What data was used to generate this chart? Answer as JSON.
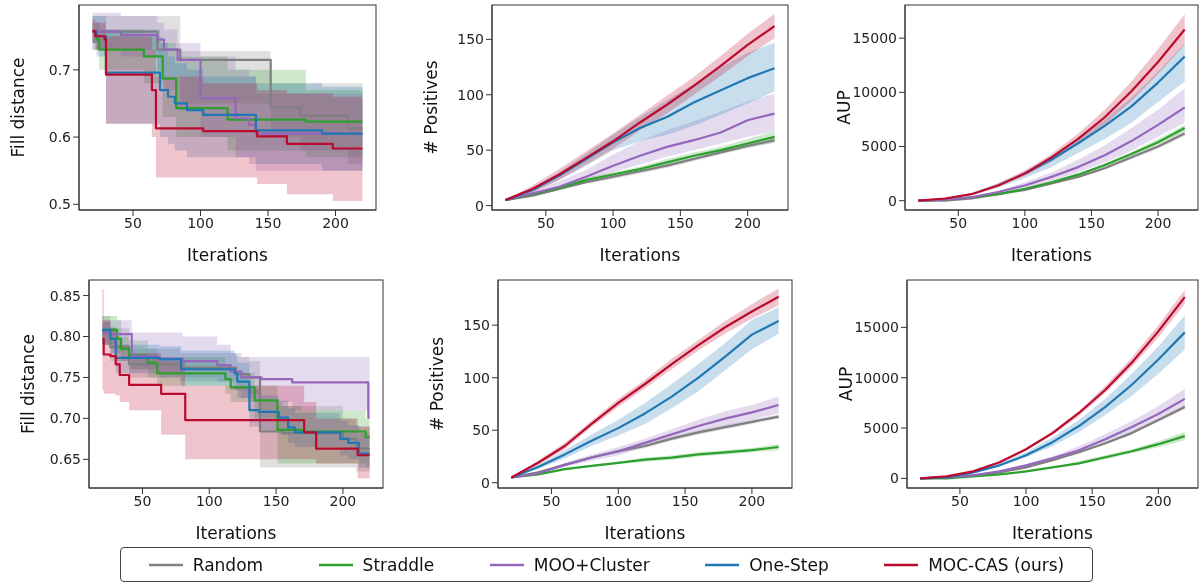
{
  "chart_data": [
    {
      "type": "step",
      "xlabel": "Iterations",
      "ylabel": "Fill distance",
      "xlim": [
        10,
        230
      ],
      "xticks": [
        50,
        100,
        150,
        200
      ],
      "ylim": [
        0.4915,
        0.7965
      ],
      "yticks": [
        0.5,
        0.6,
        0.7
      ],
      "legend": "bottom",
      "series": [
        {
          "name": "Random",
          "color": "#7f7f7f",
          "x": [
            20,
            68,
            85,
            152,
            174,
            209,
            220
          ],
          "values": [
            0.757,
            0.73,
            0.715,
            0.644,
            0.632,
            0.613,
            0.613
          ],
          "upper": [
            0.78,
            0.78,
            0.728,
            0.68,
            0.68,
            0.68,
            0.68
          ],
          "lower": [
            0.73,
            0.69,
            0.65,
            0.6,
            0.58,
            0.56,
            0.56
          ]
        },
        {
          "name": "Straddle",
          "color": "#2ca02c",
          "x": [
            20,
            23,
            25,
            58,
            72,
            82,
            120,
            178,
            220
          ],
          "values": [
            0.757,
            0.745,
            0.73,
            0.72,
            0.687,
            0.643,
            0.626,
            0.623,
            0.623
          ],
          "upper": [
            0.77,
            0.77,
            0.76,
            0.75,
            0.74,
            0.72,
            0.7,
            0.67,
            0.67
          ],
          "lower": [
            0.74,
            0.73,
            0.7,
            0.68,
            0.63,
            0.6,
            0.58,
            0.57,
            0.57
          ]
        },
        {
          "name": "MOO+Cluster",
          "color": "#9467bd",
          "x": [
            20,
            41,
            68,
            73,
            83,
            100,
            126,
            136,
            141,
            220
          ],
          "values": [
            0.757,
            0.752,
            0.745,
            0.73,
            0.715,
            0.658,
            0.628,
            0.618,
            0.605,
            0.605
          ],
          "upper": [
            0.785,
            0.78,
            0.77,
            0.76,
            0.74,
            0.72,
            0.7,
            0.69,
            0.665,
            0.665
          ],
          "lower": [
            0.73,
            0.72,
            0.7,
            0.67,
            0.64,
            0.6,
            0.57,
            0.56,
            0.55,
            0.55
          ]
        },
        {
          "name": "One-Step",
          "color": "#1f77b4",
          "x": [
            20,
            23,
            30,
            70,
            76,
            81,
            90,
            102,
            141,
            190,
            220
          ],
          "values": [
            0.757,
            0.75,
            0.696,
            0.67,
            0.66,
            0.65,
            0.64,
            0.633,
            0.61,
            0.605,
            0.605
          ],
          "upper": [
            0.78,
            0.78,
            0.76,
            0.74,
            0.72,
            0.71,
            0.7,
            0.69,
            0.68,
            0.675,
            0.675
          ],
          "lower": [
            0.74,
            0.72,
            0.62,
            0.6,
            0.59,
            0.58,
            0.57,
            0.57,
            0.56,
            0.55,
            0.55
          ]
        },
        {
          "name": "MOC-CAS (ours)",
          "color": "#bb0a2e",
          "x": [
            20,
            22,
            29,
            30,
            64,
            67,
            102,
            142,
            164,
            198,
            220
          ],
          "values": [
            0.758,
            0.75,
            0.745,
            0.693,
            0.67,
            0.613,
            0.609,
            0.601,
            0.59,
            0.583,
            0.583
          ],
          "upper": [
            0.775,
            0.77,
            0.77,
            0.75,
            0.73,
            0.69,
            0.68,
            0.67,
            0.665,
            0.66,
            0.66
          ],
          "lower": [
            0.74,
            0.73,
            0.72,
            0.62,
            0.6,
            0.54,
            0.54,
            0.53,
            0.515,
            0.505,
            0.505
          ]
        }
      ]
    },
    {
      "type": "line",
      "xlabel": "Iterations",
      "ylabel": "# Positives",
      "xlim": [
        10,
        230
      ],
      "xticks": [
        50,
        100,
        150,
        200
      ],
      "ylim": [
        -4,
        181
      ],
      "yticks": [
        0,
        50,
        100,
        150
      ],
      "x": [
        20,
        40,
        60,
        80,
        100,
        120,
        140,
        160,
        180,
        200,
        220
      ],
      "series": [
        {
          "color": "#7f7f7f",
          "values": [
            5,
            9,
            15,
            21,
            26,
            31,
            36,
            42,
            48,
            54,
            59
          ],
          "upper": [
            5,
            10,
            16,
            22,
            28,
            33,
            38,
            44,
            50,
            56,
            61
          ],
          "lower": [
            5,
            8,
            14,
            20,
            24,
            29,
            34,
            40,
            46,
            52,
            57
          ]
        },
        {
          "color": "#2ca02c",
          "values": [
            5,
            10,
            16,
            23,
            28,
            33,
            39,
            45,
            50,
            56,
            62
          ],
          "upper": [
            5,
            11,
            17,
            25,
            30,
            35,
            42,
            48,
            53,
            60,
            67
          ],
          "lower": [
            5,
            9,
            15,
            21,
            26,
            31,
            36,
            42,
            47,
            52,
            57
          ]
        },
        {
          "color": "#9467bd",
          "values": [
            5,
            11,
            17,
            26,
            36,
            45,
            53,
            59,
            66,
            77,
            83
          ],
          "upper": [
            5,
            13,
            22,
            32,
            46,
            58,
            68,
            76,
            85,
            94,
            101
          ],
          "lower": [
            5,
            10,
            15,
            22,
            30,
            37,
            44,
            50,
            56,
            62,
            67
          ]
        },
        {
          "color": "#1f77b4",
          "values": [
            5,
            14,
            27,
            42,
            57,
            70,
            80,
            93,
            104,
            115,
            124
          ],
          "upper": [
            5,
            16,
            30,
            47,
            64,
            80,
            95,
            110,
            125,
            138,
            147
          ],
          "lower": [
            5,
            12,
            23,
            36,
            50,
            58,
            64,
            72,
            82,
            92,
            103
          ]
        },
        {
          "color": "#bb0a2e",
          "values": [
            5,
            15,
            28,
            43,
            58,
            75,
            91,
            108,
            126,
            145,
            162
          ],
          "upper": [
            5,
            18,
            33,
            49,
            65,
            82,
            99,
            116,
            135,
            155,
            173
          ],
          "lower": [
            5,
            12,
            23,
            37,
            51,
            68,
            83,
            100,
            117,
            135,
            151
          ]
        }
      ]
    },
    {
      "type": "line",
      "xlabel": "Iterations",
      "ylabel": "AUP",
      "xlim": [
        10,
        230
      ],
      "xticks": [
        50,
        100,
        150,
        200
      ],
      "ylim": [
        -860,
        18060
      ],
      "yticks": [
        0,
        5000,
        10000,
        15000
      ],
      "x": [
        20,
        40,
        60,
        80,
        100,
        120,
        140,
        160,
        180,
        200,
        220
      ],
      "series": [
        {
          "color": "#7f7f7f",
          "values": [
            0,
            0,
            200,
            600,
            1000,
            1600,
            2200,
            3000,
            4000,
            5000,
            6200
          ],
          "upper": [
            0,
            100,
            300,
            600,
            1000,
            1600,
            2300,
            3200,
            4100,
            5200,
            6500
          ],
          "lower": [
            0,
            0,
            200,
            500,
            900,
            1500,
            2100,
            2900,
            3800,
            4800,
            6000
          ]
        },
        {
          "color": "#2ca02c",
          "values": [
            0,
            100,
            300,
            600,
            1100,
            1700,
            2400,
            3300,
            4300,
            5400,
            6700
          ],
          "upper": [
            0,
            100,
            300,
            600,
            1100,
            1800,
            2500,
            3400,
            4500,
            5700,
            7000
          ],
          "lower": [
            0,
            100,
            300,
            600,
            1000,
            1600,
            2300,
            3100,
            4100,
            5200,
            6400
          ]
        },
        {
          "color": "#9467bd",
          "values": [
            0,
            100,
            300,
            800,
            1400,
            2200,
            3100,
            4200,
            5500,
            7000,
            8600
          ],
          "upper": [
            0,
            100,
            400,
            900,
            1700,
            2600,
            3800,
            5100,
            6700,
            8400,
            10400
          ],
          "lower": [
            0,
            100,
            300,
            700,
            1200,
            1800,
            2600,
            3500,
            4600,
            5900,
            7200
          ]
        },
        {
          "color": "#1f77b4",
          "values": [
            null,
            null,
            null,
            null,
            2500,
            3800,
            5300,
            6900,
            8700,
            10900,
            13300
          ],
          "upper": [
            0,
            200,
            700,
            1600,
            2700,
            4100,
            5800,
            7500,
            9500,
            11900,
            14500
          ],
          "lower": [
            0,
            100,
            500,
            1200,
            2100,
            3100,
            4400,
            5700,
            7200,
            9100,
            11000
          ]
        },
        {
          "color": "#bb0a2e",
          "values": [
            0,
            200,
            600,
            1400,
            2500,
            4000,
            5700,
            7700,
            10100,
            12800,
            15800
          ],
          "upper": [
            0,
            200,
            700,
            1600,
            2800,
            4300,
            6200,
            8400,
            11000,
            14000,
            17200
          ],
          "lower": [
            0,
            200,
            600,
            1300,
            2300,
            3600,
            5200,
            7000,
            9200,
            11700,
            14400
          ]
        }
      ]
    },
    {
      "type": "step",
      "xlabel": "Iterations",
      "ylabel": "Fill distance",
      "xlim": [
        10,
        230
      ],
      "xticks": [
        50,
        100,
        150,
        200
      ],
      "ylim": [
        0.615,
        0.869
      ],
      "yticks": [
        0.65,
        {
          "value": 0.7,
          "label": "0.70"
        },
        0.75,
        {
          "value": 0.8,
          "label": "0.80"
        },
        0.85
      ],
      "series": [
        {
          "color": "#7f7f7f",
          "x": [
            20,
            26,
            40,
            78,
            120,
            130,
            138,
            155,
            200,
            210,
            220
          ],
          "values": [
            0.805,
            0.787,
            0.766,
            0.762,
            0.754,
            0.75,
            0.684,
            0.682,
            0.675,
            0.663,
            0.663
          ],
          "upper": [
            0.825,
            0.81,
            0.785,
            0.78,
            0.775,
            0.77,
            0.72,
            0.715,
            0.7,
            0.69,
            0.69
          ],
          "lower": [
            0.79,
            0.77,
            0.75,
            0.745,
            0.735,
            0.73,
            0.64,
            0.64,
            0.64,
            0.635,
            0.635
          ]
        },
        {
          "color": "#2ca02c",
          "x": [
            20,
            31,
            34,
            40,
            54,
            61,
            112,
            116,
            134,
            151,
            169,
            217,
            220
          ],
          "values": [
            0.808,
            0.797,
            0.785,
            0.777,
            0.768,
            0.755,
            0.748,
            0.738,
            0.722,
            0.686,
            0.684,
            0.677,
            0.677
          ],
          "upper": [
            0.825,
            0.82,
            0.8,
            0.795,
            0.785,
            0.775,
            0.765,
            0.755,
            0.74,
            0.715,
            0.71,
            0.7,
            0.7
          ],
          "lower": [
            0.79,
            0.78,
            0.77,
            0.76,
            0.75,
            0.74,
            0.73,
            0.72,
            0.7,
            0.645,
            0.645,
            0.64,
            0.64
          ]
        },
        {
          "color": "#9467bd",
          "x": [
            20,
            26,
            42,
            61,
            80,
            106,
            116,
            124,
            139,
            162,
            219,
            220
          ],
          "values": [
            0.805,
            0.803,
            0.776,
            0.773,
            0.77,
            0.765,
            0.757,
            0.75,
            0.748,
            0.744,
            0.701,
            0.701
          ],
          "upper": [
            0.82,
            0.82,
            0.805,
            0.805,
            0.8,
            0.79,
            0.78,
            0.775,
            0.775,
            0.775,
            0.775,
            0.775
          ],
          "lower": [
            0.79,
            0.785,
            0.76,
            0.755,
            0.75,
            0.745,
            0.735,
            0.725,
            0.72,
            0.71,
            0.7,
            0.7
          ]
        },
        {
          "color": "#1f77b4",
          "x": [
            20,
            26,
            30,
            63,
            79,
            119,
            121,
            130,
            137,
            152,
            159,
            164,
            198,
            204,
            212,
            220
          ],
          "values": [
            0.808,
            0.797,
            0.774,
            0.772,
            0.76,
            0.755,
            0.745,
            0.71,
            0.708,
            0.701,
            0.689,
            0.683,
            0.675,
            0.67,
            0.657,
            0.657
          ],
          "upper": [
            0.818,
            0.812,
            0.79,
            0.788,
            0.783,
            0.778,
            0.768,
            0.735,
            0.728,
            0.722,
            0.712,
            0.707,
            0.697,
            0.692,
            0.682,
            0.682
          ],
          "lower": [
            0.79,
            0.78,
            0.755,
            0.75,
            0.74,
            0.735,
            0.725,
            0.69,
            0.685,
            0.68,
            0.67,
            0.665,
            0.655,
            0.65,
            0.64,
            0.64
          ]
        },
        {
          "color": "#bb0a2e",
          "x": [
            20,
            21,
            26,
            30,
            33,
            40,
            64,
            82,
            171,
            180,
            211,
            220
          ],
          "values": [
            0.797,
            0.778,
            0.776,
            0.766,
            0.753,
            0.741,
            0.73,
            0.698,
            0.683,
            0.663,
            0.655,
            0.655
          ],
          "upper": [
            0.858,
            0.82,
            0.81,
            0.8,
            0.79,
            0.78,
            0.77,
            0.74,
            0.72,
            0.7,
            0.69,
            0.69
          ],
          "lower": [
            0.735,
            0.73,
            0.73,
            0.728,
            0.72,
            0.71,
            0.68,
            0.65,
            0.65,
            0.645,
            0.627,
            0.627
          ]
        }
      ]
    },
    {
      "type": "line",
      "xlabel": "Iterations",
      "ylabel": "# Positives",
      "xlim": [
        10,
        230
      ],
      "xticks": [
        50,
        100,
        150,
        200
      ],
      "ylim": [
        -5,
        193
      ],
      "yticks": [
        0,
        50,
        100,
        150
      ],
      "x": [
        20,
        40,
        60,
        80,
        100,
        120,
        140,
        160,
        180,
        200,
        220
      ],
      "series": [
        {
          "color": "#7f7f7f",
          "values": [
            5,
            10,
            17,
            24,
            30,
            35,
            42,
            48,
            53,
            58,
            63
          ],
          "upper": [
            5,
            11,
            18,
            25,
            32,
            37,
            44,
            50,
            55,
            60,
            65
          ],
          "lower": [
            5,
            9,
            16,
            23,
            28,
            33,
            40,
            46,
            51,
            56,
            61
          ]
        },
        {
          "color": "#2ca02c",
          "values": [
            5,
            8,
            13,
            16,
            19,
            22,
            24,
            27,
            29,
            31,
            34
          ],
          "upper": [
            5,
            9,
            14,
            17,
            20,
            24,
            26,
            29,
            31,
            33,
            37
          ],
          "lower": [
            5,
            7,
            12,
            15,
            18,
            20,
            22,
            25,
            27,
            29,
            31
          ]
        },
        {
          "color": "#9467bd",
          "values": [
            5,
            9,
            17,
            24,
            30,
            38,
            46,
            54,
            61,
            67,
            74
          ],
          "upper": [
            5,
            10,
            19,
            27,
            34,
            42,
            51,
            60,
            68,
            74,
            82
          ],
          "lower": [
            5,
            8,
            15,
            21,
            26,
            34,
            41,
            48,
            54,
            60,
            66
          ]
        },
        {
          "color": "#1f77b4",
          "values": [
            5,
            15,
            27,
            40,
            52,
            66,
            82,
            100,
            120,
            141,
            154
          ],
          "upper": [
            5,
            17,
            31,
            46,
            60,
            76,
            94,
            113,
            133,
            155,
            167
          ],
          "lower": [
            5,
            13,
            23,
            35,
            45,
            56,
            71,
            87,
            107,
            127,
            142
          ]
        },
        {
          "color": "#bb0a2e",
          "values": [
            5,
            19,
            35,
            56,
            76,
            94,
            113,
            131,
            148,
            163,
            177
          ],
          "upper": [
            5,
            21,
            38,
            59,
            80,
            98,
            118,
            136,
            154,
            170,
            185
          ],
          "lower": [
            5,
            17,
            32,
            53,
            72,
            90,
            108,
            126,
            142,
            156,
            169
          ]
        }
      ]
    },
    {
      "type": "line",
      "xlabel": "Iterations",
      "ylabel": "AUP",
      "xlim": [
        10,
        230
      ],
      "xticks": [
        50,
        100,
        150,
        200
      ],
      "ylim": [
        -950,
        19700
      ],
      "yticks": [
        0,
        5000,
        10000,
        15000
      ],
      "x": [
        20,
        40,
        60,
        80,
        100,
        120,
        140,
        160,
        180,
        200,
        220
      ],
      "series": [
        {
          "color": "#7f7f7f",
          "values": [
            0,
            100,
            300,
            600,
            1100,
            1800,
            2600,
            3500,
            4500,
            5800,
            7100
          ],
          "upper": [
            0,
            100,
            300,
            700,
            1200,
            1800,
            2600,
            3600,
            4700,
            5900,
            7300
          ],
          "lower": [
            0,
            100,
            300,
            600,
            1100,
            1700,
            2500,
            3400,
            4400,
            5600,
            6900
          ]
        },
        {
          "color": "#2ca02c",
          "values": [
            0,
            0,
            200,
            400,
            700,
            1100,
            1500,
            2100,
            2700,
            3400,
            4200
          ],
          "upper": [
            0,
            0,
            200,
            400,
            700,
            1100,
            1700,
            2300,
            2900,
            3700,
            4600
          ],
          "lower": [
            0,
            0,
            200,
            400,
            600,
            1000,
            1400,
            1900,
            2500,
            3100,
            3800
          ]
        },
        {
          "color": "#9467bd",
          "values": [
            0,
            100,
            300,
            700,
            1300,
            2000,
            2800,
            3900,
            5100,
            6400,
            7900
          ],
          "upper": [
            0,
            100,
            400,
            800,
            1400,
            2200,
            3200,
            4400,
            5700,
            7200,
            8900
          ],
          "lower": [
            0,
            100,
            300,
            600,
            1100,
            1800,
            2500,
            3400,
            4500,
            5700,
            7000
          ]
        },
        {
          "color": "#1f77b4",
          "values": [
            0,
            100,
            600,
            1300,
            2300,
            3600,
            5200,
            7100,
            9300,
            11800,
            14500
          ],
          "upper": [
            0,
            200,
            700,
            1500,
            2600,
            4100,
            5800,
            7900,
            10400,
            13100,
            16200
          ],
          "lower": [
            0,
            100,
            500,
            1200,
            2100,
            3200,
            4600,
            6300,
            8200,
            10400,
            12800
          ]
        },
        {
          "color": "#bb0a2e",
          "values": [
            0,
            200,
            700,
            1600,
            2900,
            4500,
            6500,
            8800,
            11500,
            14600,
            18000
          ],
          "upper": [
            0,
            200,
            800,
            1700,
            3000,
            4700,
            6700,
            9200,
            12000,
            15200,
            18700
          ],
          "lower": [
            0,
            200,
            700,
            1600,
            2800,
            4300,
            6200,
            8500,
            11100,
            14000,
            17300
          ]
        }
      ]
    }
  ]
}
